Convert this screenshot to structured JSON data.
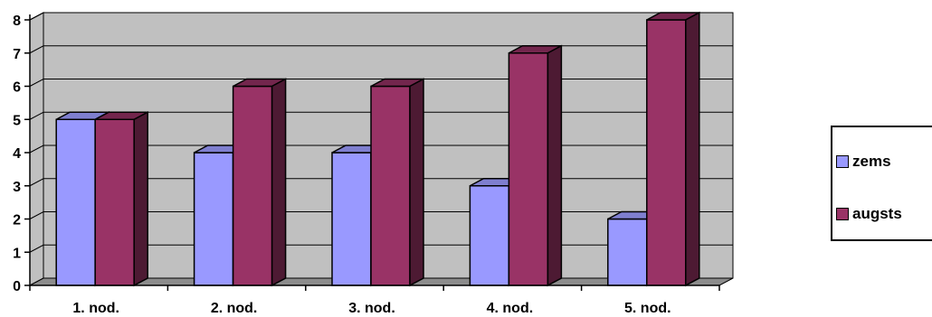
{
  "chart_data": {
    "type": "bar",
    "categories": [
      "1. nod.",
      "2. nod.",
      "3. nod.",
      "4. nod.",
      "5. nod."
    ],
    "series": [
      {
        "name": "zems",
        "values": [
          5,
          4,
          4,
          3,
          2
        ],
        "color": "#9999ff",
        "side_color": "#5a5a99",
        "top_color": "#7f7fcf"
      },
      {
        "name": "augsts",
        "values": [
          5,
          6,
          6,
          7,
          8
        ],
        "color": "#993366",
        "side_color": "#4d1a33",
        "top_color": "#73264d"
      }
    ],
    "ylim": [
      0,
      8
    ],
    "yticks": [
      "0",
      "1",
      "2",
      "3",
      "4",
      "5",
      "6",
      "7",
      "8"
    ],
    "grid": true,
    "wall_color": "#c0c0c0",
    "legend_position": "right"
  }
}
